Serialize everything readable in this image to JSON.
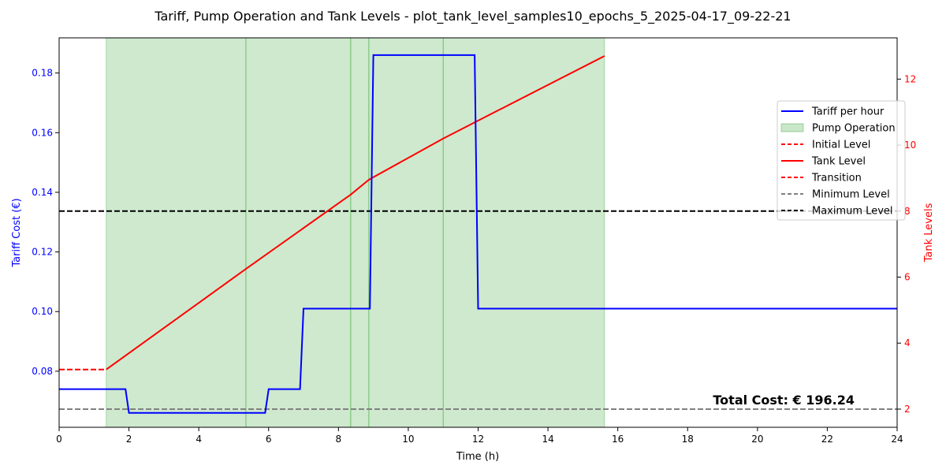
{
  "chart_data": {
    "type": "line",
    "title": "Tariff, Pump Operation and Tank Levels - plot_tank_level_samples10_epochs_5_2025-04-17_09-22-21",
    "xlabel": "Time (h)",
    "ylabel_left": "Tariff Cost (€)",
    "ylabel_right": "Tank Levels",
    "xlim": [
      0,
      24
    ],
    "ylim_left": [
      0.0612,
      0.1918
    ],
    "ylim_right": [
      1.45,
      13.25
    ],
    "x_ticks": [
      "0",
      "2",
      "4",
      "6",
      "8",
      "10",
      "12",
      "14",
      "16",
      "18",
      "20",
      "22",
      "24"
    ],
    "y_left_ticks": [
      "0.08",
      "0.10",
      "0.12",
      "0.14",
      "0.16",
      "0.18"
    ],
    "y_right_ticks": [
      "2",
      "4",
      "6",
      "8",
      "10",
      "12"
    ],
    "grid": false,
    "legend_position": "right",
    "colors": {
      "tariff": "#0000ff",
      "pump": "#2ca02c",
      "tank": "#ff0000",
      "minimum": "#808080",
      "maximum": "#000000"
    },
    "tariff_per_hour": {
      "name": "Tariff per hour",
      "x": [
        0,
        1.9,
        2.0,
        5.9,
        6.0,
        6.9,
        7.0,
        8.9,
        9.0,
        11.9,
        12.0,
        24
      ],
      "y": [
        0.074,
        0.074,
        0.066,
        0.066,
        0.074,
        0.074,
        0.101,
        0.101,
        0.186,
        0.186,
        0.101,
        0.101
      ]
    },
    "pump_operation": {
      "name": "Pump Operation",
      "intervals": [
        [
          1.35,
          5.35
        ],
        [
          5.35,
          8.35
        ],
        [
          8.35,
          8.87
        ],
        [
          8.87,
          11.0
        ],
        [
          11.0,
          15.62
        ]
      ]
    },
    "initial_level": {
      "name": "Initial Level",
      "x": [
        0,
        1.35
      ],
      "y": [
        3.2,
        3.2
      ]
    },
    "tank_level": {
      "name": "Tank Level",
      "x": [
        1.35,
        5.35,
        8.35,
        8.87,
        11.0,
        15.62
      ],
      "y": [
        3.2,
        6.25,
        8.5,
        8.95,
        10.2,
        12.7
      ]
    },
    "transition": {
      "name": "Transition",
      "x": [],
      "y": []
    },
    "minimum_level": {
      "name": "Minimum Level",
      "value": 2
    },
    "maximum_level": {
      "name": "Maximum Level",
      "value": 8
    },
    "annotation": "Total Cost: € 196.24"
  }
}
